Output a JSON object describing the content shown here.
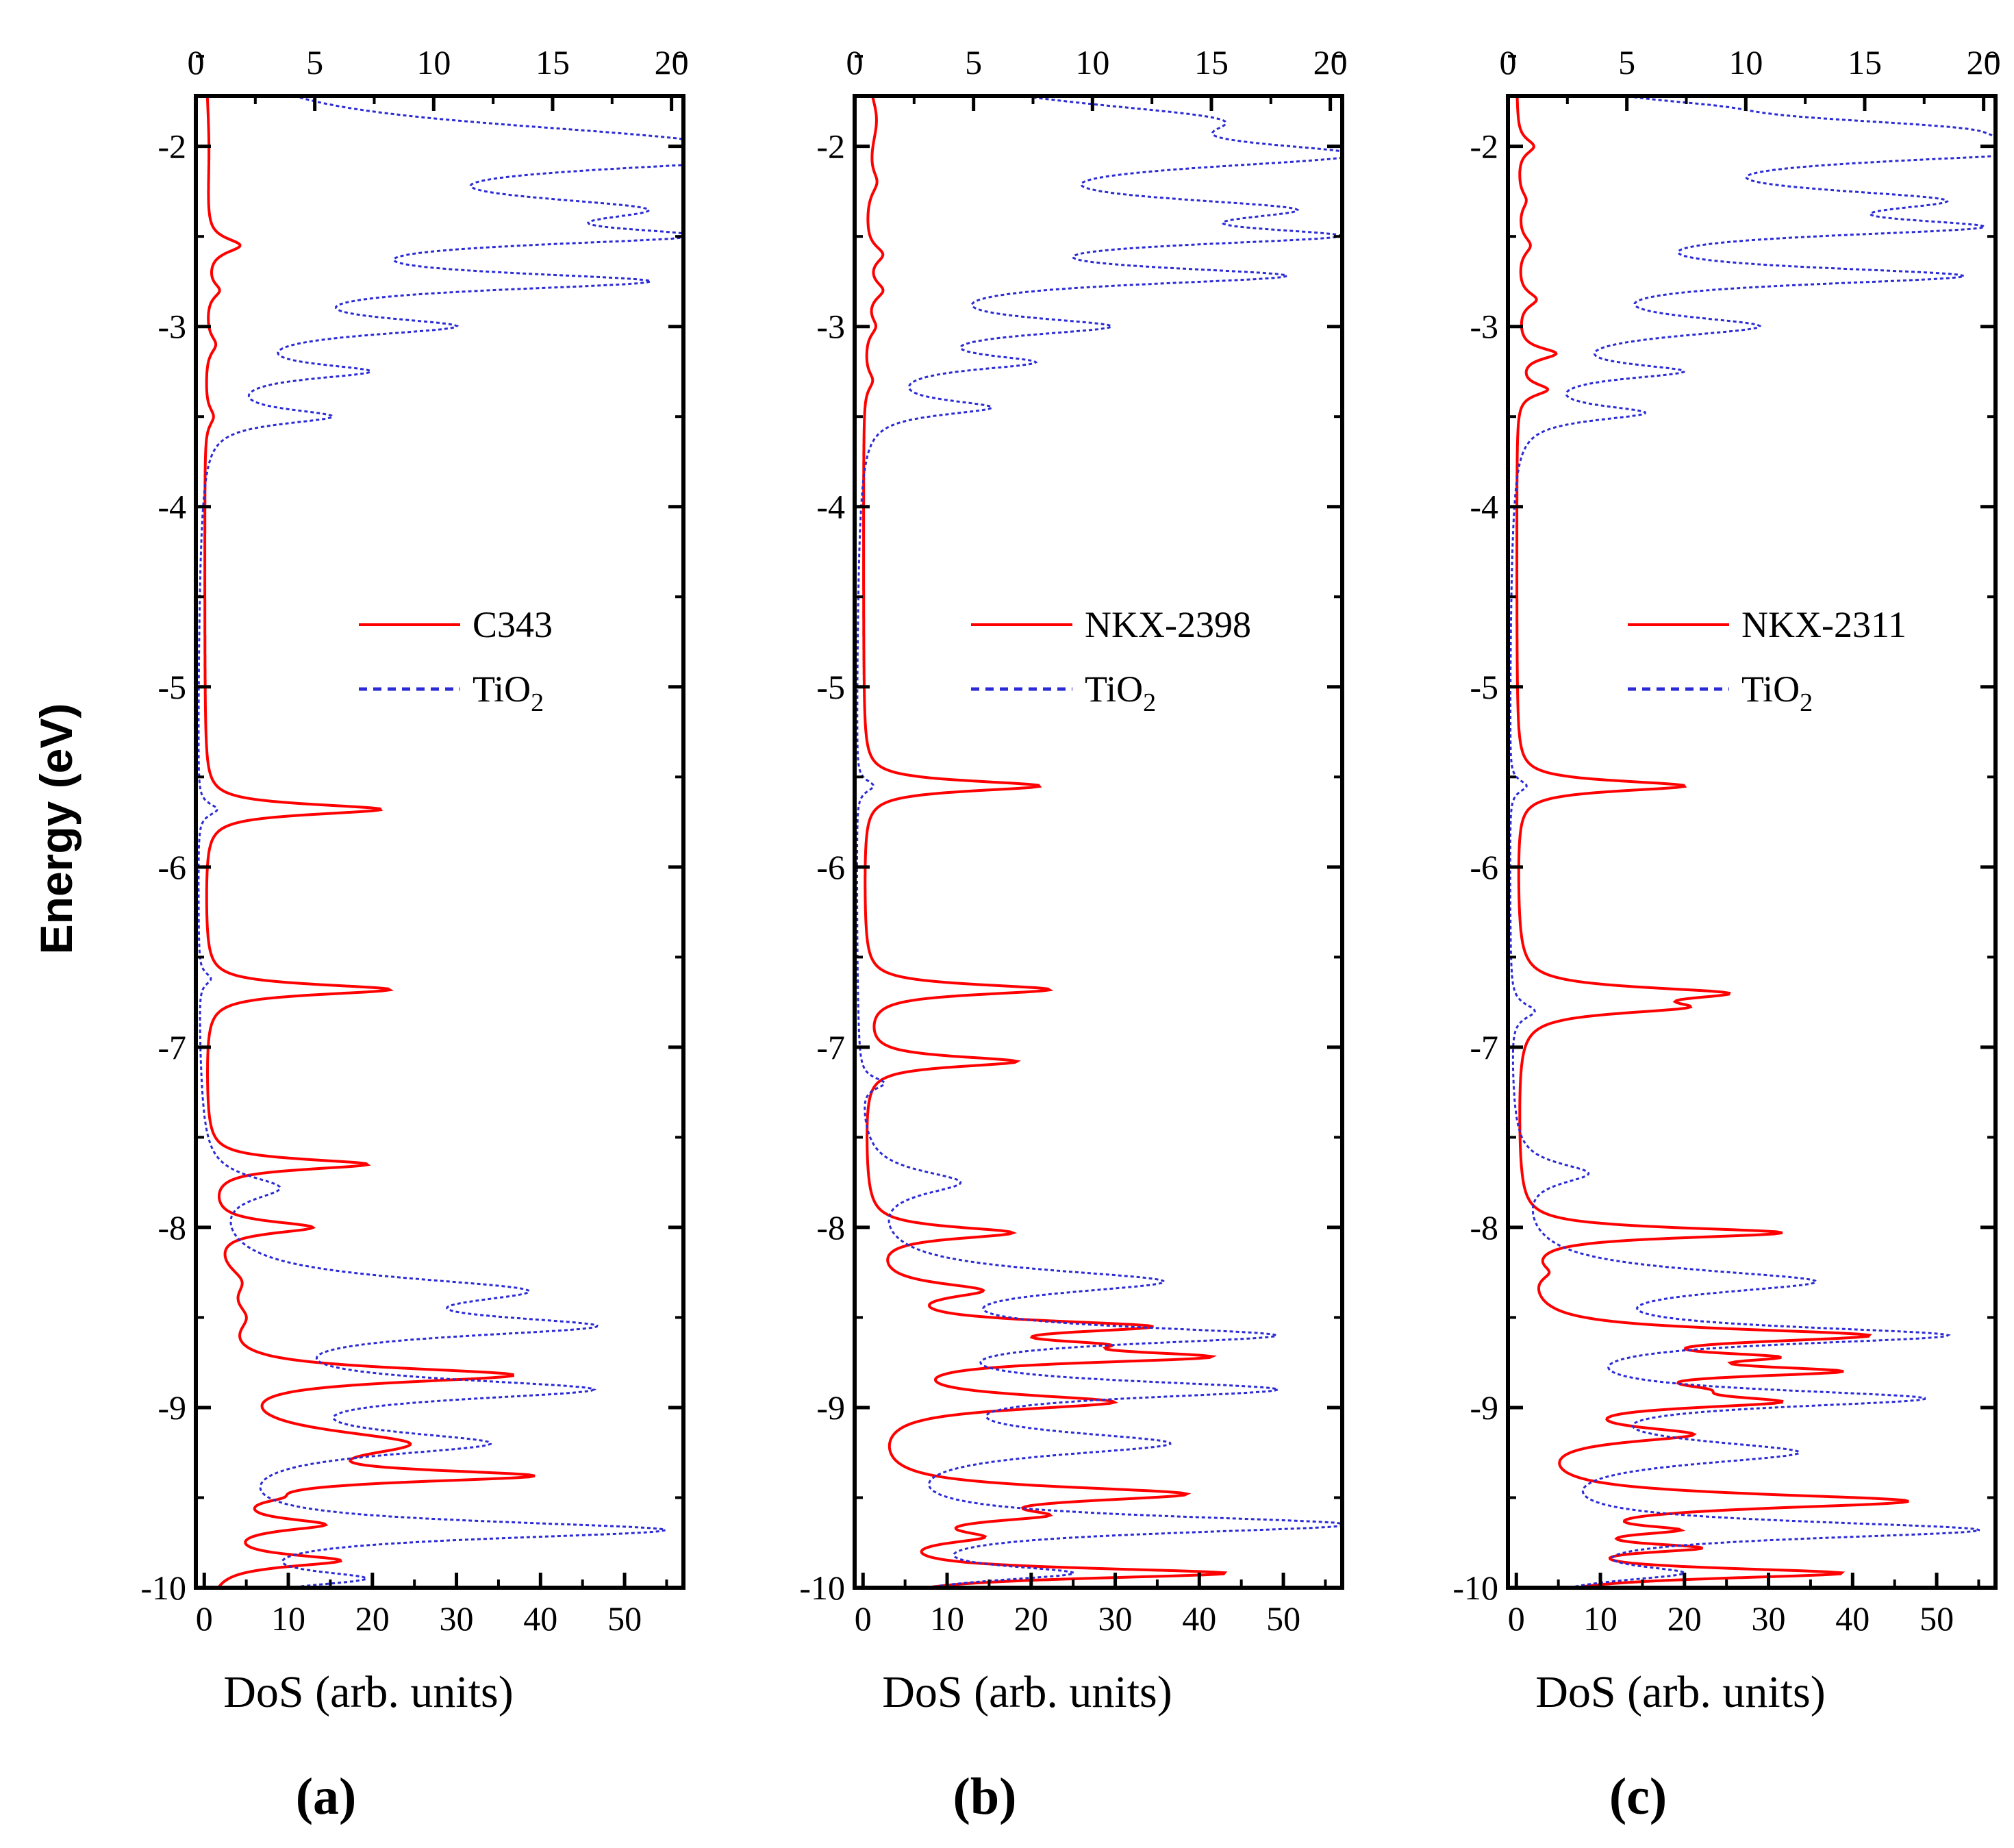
{
  "figure": {
    "y_axis_label": "Energy (eV)"
  },
  "colors": {
    "dye": "#ff0000",
    "tio2": "#2b2bd6",
    "axis": "#000000"
  },
  "chart_data": [
    {
      "type": "line",
      "panel_label": "(a)",
      "xlabel": "DoS (arb. units)",
      "ylabel": "Energy (eV)",
      "ylim": [
        -10,
        -1.72
      ],
      "yticks": [
        -10,
        -9,
        -8,
        -7,
        -6,
        -5,
        -4,
        -3,
        -2
      ],
      "bottom_axis": {
        "lim": [
          -1,
          57
        ],
        "ticks": [
          0,
          10,
          20,
          30,
          40,
          50
        ]
      },
      "top_axis": {
        "lim": [
          0,
          20.5
        ],
        "ticks": [
          0,
          5,
          10,
          15,
          20
        ]
      },
      "legend": {
        "position": "center-right",
        "entries": [
          "C343",
          "TiO2"
        ]
      },
      "series": [
        {
          "name": "C343",
          "axis": "bottom",
          "style": "solid",
          "color": "#ff0000",
          "peaks": [
            {
              "e": -2.0,
              "h": 0.5,
              "w": 0.4
            },
            {
              "e": -2.55,
              "h": 4.0,
              "w": 0.05
            },
            {
              "e": -2.8,
              "h": 1.5,
              "w": 0.05
            },
            {
              "e": -3.1,
              "h": 1.2,
              "w": 0.06
            },
            {
              "e": -3.5,
              "h": 1.0,
              "w": 0.06
            },
            {
              "e": -5.68,
              "h": 21,
              "w": 0.035
            },
            {
              "e": -6.68,
              "h": 22,
              "w": 0.035
            },
            {
              "e": -7.65,
              "h": 19,
              "w": 0.035
            },
            {
              "e": -8.0,
              "h": 12,
              "w": 0.04
            },
            {
              "e": -8.3,
              "h": 3,
              "w": 0.1
            },
            {
              "e": -8.5,
              "h": 3,
              "w": 0.1
            },
            {
              "e": -8.82,
              "h": 35,
              "w": 0.05
            },
            {
              "e": -9.2,
              "h": 22,
              "w": 0.09
            },
            {
              "e": -9.38,
              "h": 34,
              "w": 0.04
            },
            {
              "e": -9.5,
              "h": 3,
              "w": 0.03
            },
            {
              "e": -9.65,
              "h": 12,
              "w": 0.04
            },
            {
              "e": -9.85,
              "h": 15,
              "w": 0.04
            }
          ]
        },
        {
          "name": "TiO2",
          "axis": "top",
          "style": "dashed",
          "color": "#2b2bd6",
          "peaks": [
            {
              "e": -1.95,
              "h": 12,
              "w": 0.12
            },
            {
              "e": -2.06,
              "h": 17,
              "w": 0.09
            },
            {
              "e": -2.35,
              "h": 14,
              "w": 0.09
            },
            {
              "e": -2.5,
              "h": 15,
              "w": 0.06
            },
            {
              "e": -2.75,
              "h": 16.5,
              "w": 0.06
            },
            {
              "e": -3.0,
              "h": 9,
              "w": 0.06
            },
            {
              "e": -3.25,
              "h": 6,
              "w": 0.05
            },
            {
              "e": -3.5,
              "h": 5,
              "w": 0.05
            },
            {
              "e": -5.68,
              "h": 0.8,
              "w": 0.04
            },
            {
              "e": -6.62,
              "h": 0.5,
              "w": 0.04
            },
            {
              "e": -7.78,
              "h": 3,
              "w": 0.08
            },
            {
              "e": -8.35,
              "h": 12,
              "w": 0.09
            },
            {
              "e": -8.55,
              "h": 14,
              "w": 0.07
            },
            {
              "e": -8.9,
              "h": 15,
              "w": 0.07
            },
            {
              "e": -9.2,
              "h": 11,
              "w": 0.08
            },
            {
              "e": -9.68,
              "h": 19,
              "w": 0.06
            },
            {
              "e": -9.95,
              "h": 6,
              "w": 0.05
            }
          ]
        }
      ]
    },
    {
      "type": "line",
      "panel_label": "(b)",
      "xlabel": "DoS (arb. units)",
      "ylabel": "Energy (eV)",
      "ylim": [
        -10,
        -1.72
      ],
      "yticks": [
        -10,
        -9,
        -8,
        -7,
        -6,
        -5,
        -4,
        -3,
        -2
      ],
      "bottom_axis": {
        "lim": [
          -1,
          57
        ],
        "ticks": [
          0,
          10,
          20,
          30,
          40,
          50
        ]
      },
      "top_axis": {
        "lim": [
          0,
          20.5
        ],
        "ticks": [
          0,
          5,
          10,
          15,
          20
        ]
      },
      "legend": {
        "position": "center-right",
        "entries": [
          "NKX-2398",
          "TiO2"
        ]
      },
      "series": [
        {
          "name": "NKX-2398",
          "axis": "bottom",
          "style": "solid",
          "color": "#ff0000",
          "peaks": [
            {
              "e": -1.85,
              "h": 1.5,
              "w": 0.2
            },
            {
              "e": -2.2,
              "h": 1.2,
              "w": 0.08
            },
            {
              "e": -2.6,
              "h": 2.0,
              "w": 0.06
            },
            {
              "e": -2.8,
              "h": 2.0,
              "w": 0.06
            },
            {
              "e": -3.0,
              "h": 1.2,
              "w": 0.06
            },
            {
              "e": -3.3,
              "h": 1.0,
              "w": 0.06
            },
            {
              "e": -5.55,
              "h": 21,
              "w": 0.035
            },
            {
              "e": -6.68,
              "h": 22,
              "w": 0.035
            },
            {
              "e": -7.08,
              "h": 18,
              "w": 0.035
            },
            {
              "e": -8.03,
              "h": 17,
              "w": 0.04
            },
            {
              "e": -8.35,
              "h": 12,
              "w": 0.05
            },
            {
              "e": -8.55,
              "h": 30,
              "w": 0.04
            },
            {
              "e": -8.65,
              "h": 15,
              "w": 0.03
            },
            {
              "e": -8.72,
              "h": 36,
              "w": 0.04
            },
            {
              "e": -8.97,
              "h": 28,
              "w": 0.05
            },
            {
              "e": -9.48,
              "h": 36,
              "w": 0.05
            },
            {
              "e": -9.6,
              "h": 15,
              "w": 0.04
            },
            {
              "e": -9.72,
              "h": 10,
              "w": 0.04
            },
            {
              "e": -9.92,
              "h": 42,
              "w": 0.035
            }
          ]
        },
        {
          "name": "TiO2",
          "axis": "top",
          "style": "dashed",
          "color": "#2b2bd6",
          "peaks": [
            {
              "e": -1.85,
              "h": 12,
              "w": 0.12
            },
            {
              "e": -2.05,
              "h": 16.5,
              "w": 0.09
            },
            {
              "e": -2.35,
              "h": 14,
              "w": 0.08
            },
            {
              "e": -2.5,
              "h": 15,
              "w": 0.06
            },
            {
              "e": -2.72,
              "h": 15.5,
              "w": 0.06
            },
            {
              "e": -3.0,
              "h": 9,
              "w": 0.06
            },
            {
              "e": -3.2,
              "h": 6,
              "w": 0.05
            },
            {
              "e": -3.45,
              "h": 5,
              "w": 0.05
            },
            {
              "e": -5.55,
              "h": 0.7,
              "w": 0.04
            },
            {
              "e": -7.2,
              "h": 1.0,
              "w": 0.04
            },
            {
              "e": -7.75,
              "h": 4,
              "w": 0.08
            },
            {
              "e": -8.3,
              "h": 12,
              "w": 0.08
            },
            {
              "e": -8.6,
              "h": 16,
              "w": 0.06
            },
            {
              "e": -8.9,
              "h": 16,
              "w": 0.06
            },
            {
              "e": -9.2,
              "h": 12,
              "w": 0.08
            },
            {
              "e": -9.65,
              "h": 20,
              "w": 0.06
            },
            {
              "e": -9.92,
              "h": 8,
              "w": 0.05
            }
          ]
        }
      ]
    },
    {
      "type": "line",
      "panel_label": "(c)",
      "xlabel": "DoS (arb. units)",
      "ylabel": "Energy (eV)",
      "ylim": [
        -10,
        -1.72
      ],
      "yticks": [
        -10,
        -9,
        -8,
        -7,
        -6,
        -5,
        -4,
        -3,
        -2
      ],
      "bottom_axis": {
        "lim": [
          -1,
          57
        ],
        "ticks": [
          0,
          10,
          20,
          30,
          40,
          50
        ]
      },
      "top_axis": {
        "lim": [
          0,
          20.5
        ],
        "ticks": [
          0,
          5,
          10,
          15,
          20
        ]
      },
      "legend": {
        "position": "center-right",
        "entries": [
          "NKX-2311",
          "TiO2"
        ]
      },
      "series": [
        {
          "name": "NKX-2311",
          "axis": "bottom",
          "style": "solid",
          "color": "#ff0000",
          "peaks": [
            {
              "e": -2.0,
              "h": 2.0,
              "w": 0.05
            },
            {
              "e": -2.3,
              "h": 1.0,
              "w": 0.06
            },
            {
              "e": -2.55,
              "h": 1.5,
              "w": 0.06
            },
            {
              "e": -2.85,
              "h": 2.2,
              "w": 0.05
            },
            {
              "e": -3.15,
              "h": 4.5,
              "w": 0.04
            },
            {
              "e": -3.35,
              "h": 3.5,
              "w": 0.04
            },
            {
              "e": -5.55,
              "h": 20,
              "w": 0.035
            },
            {
              "e": -6.7,
              "h": 22,
              "w": 0.04
            },
            {
              "e": -6.78,
              "h": 16,
              "w": 0.04
            },
            {
              "e": -8.03,
              "h": 31,
              "w": 0.035
            },
            {
              "e": -8.25,
              "h": 2,
              "w": 0.05
            },
            {
              "e": -8.6,
              "h": 39,
              "w": 0.045
            },
            {
              "e": -8.72,
              "h": 20,
              "w": 0.03
            },
            {
              "e": -8.8,
              "h": 31,
              "w": 0.035
            },
            {
              "e": -8.9,
              "h": 11,
              "w": 0.04
            },
            {
              "e": -8.97,
              "h": 25,
              "w": 0.04
            },
            {
              "e": -9.15,
              "h": 18,
              "w": 0.05
            },
            {
              "e": -9.52,
              "h": 45,
              "w": 0.05
            },
            {
              "e": -9.68,
              "h": 13,
              "w": 0.03
            },
            {
              "e": -9.78,
              "h": 17,
              "w": 0.03
            },
            {
              "e": -9.92,
              "h": 37,
              "w": 0.035
            }
          ]
        },
        {
          "name": "TiO2",
          "axis": "top",
          "style": "dashed",
          "color": "#2b2bd6",
          "peaks": [
            {
              "e": -1.78,
              "h": 3,
              "w": 0.05
            },
            {
              "e": -1.9,
              "h": 12,
              "w": 0.08
            },
            {
              "e": -2.02,
              "h": 19,
              "w": 0.08
            },
            {
              "e": -2.3,
              "h": 14,
              "w": 0.08
            },
            {
              "e": -2.45,
              "h": 15,
              "w": 0.06
            },
            {
              "e": -2.72,
              "h": 17,
              "w": 0.06
            },
            {
              "e": -3.0,
              "h": 9,
              "w": 0.07
            },
            {
              "e": -3.25,
              "h": 6,
              "w": 0.05
            },
            {
              "e": -3.48,
              "h": 5,
              "w": 0.05
            },
            {
              "e": -5.55,
              "h": 0.7,
              "w": 0.04
            },
            {
              "e": -6.8,
              "h": 1.0,
              "w": 0.05
            },
            {
              "e": -7.7,
              "h": 3,
              "w": 0.07
            },
            {
              "e": -8.3,
              "h": 12,
              "w": 0.08
            },
            {
              "e": -8.6,
              "h": 17,
              "w": 0.06
            },
            {
              "e": -8.95,
              "h": 16,
              "w": 0.06
            },
            {
              "e": -9.25,
              "h": 11,
              "w": 0.08
            },
            {
              "e": -9.68,
              "h": 19,
              "w": 0.06
            },
            {
              "e": -9.92,
              "h": 6,
              "w": 0.05
            }
          ]
        }
      ]
    }
  ]
}
